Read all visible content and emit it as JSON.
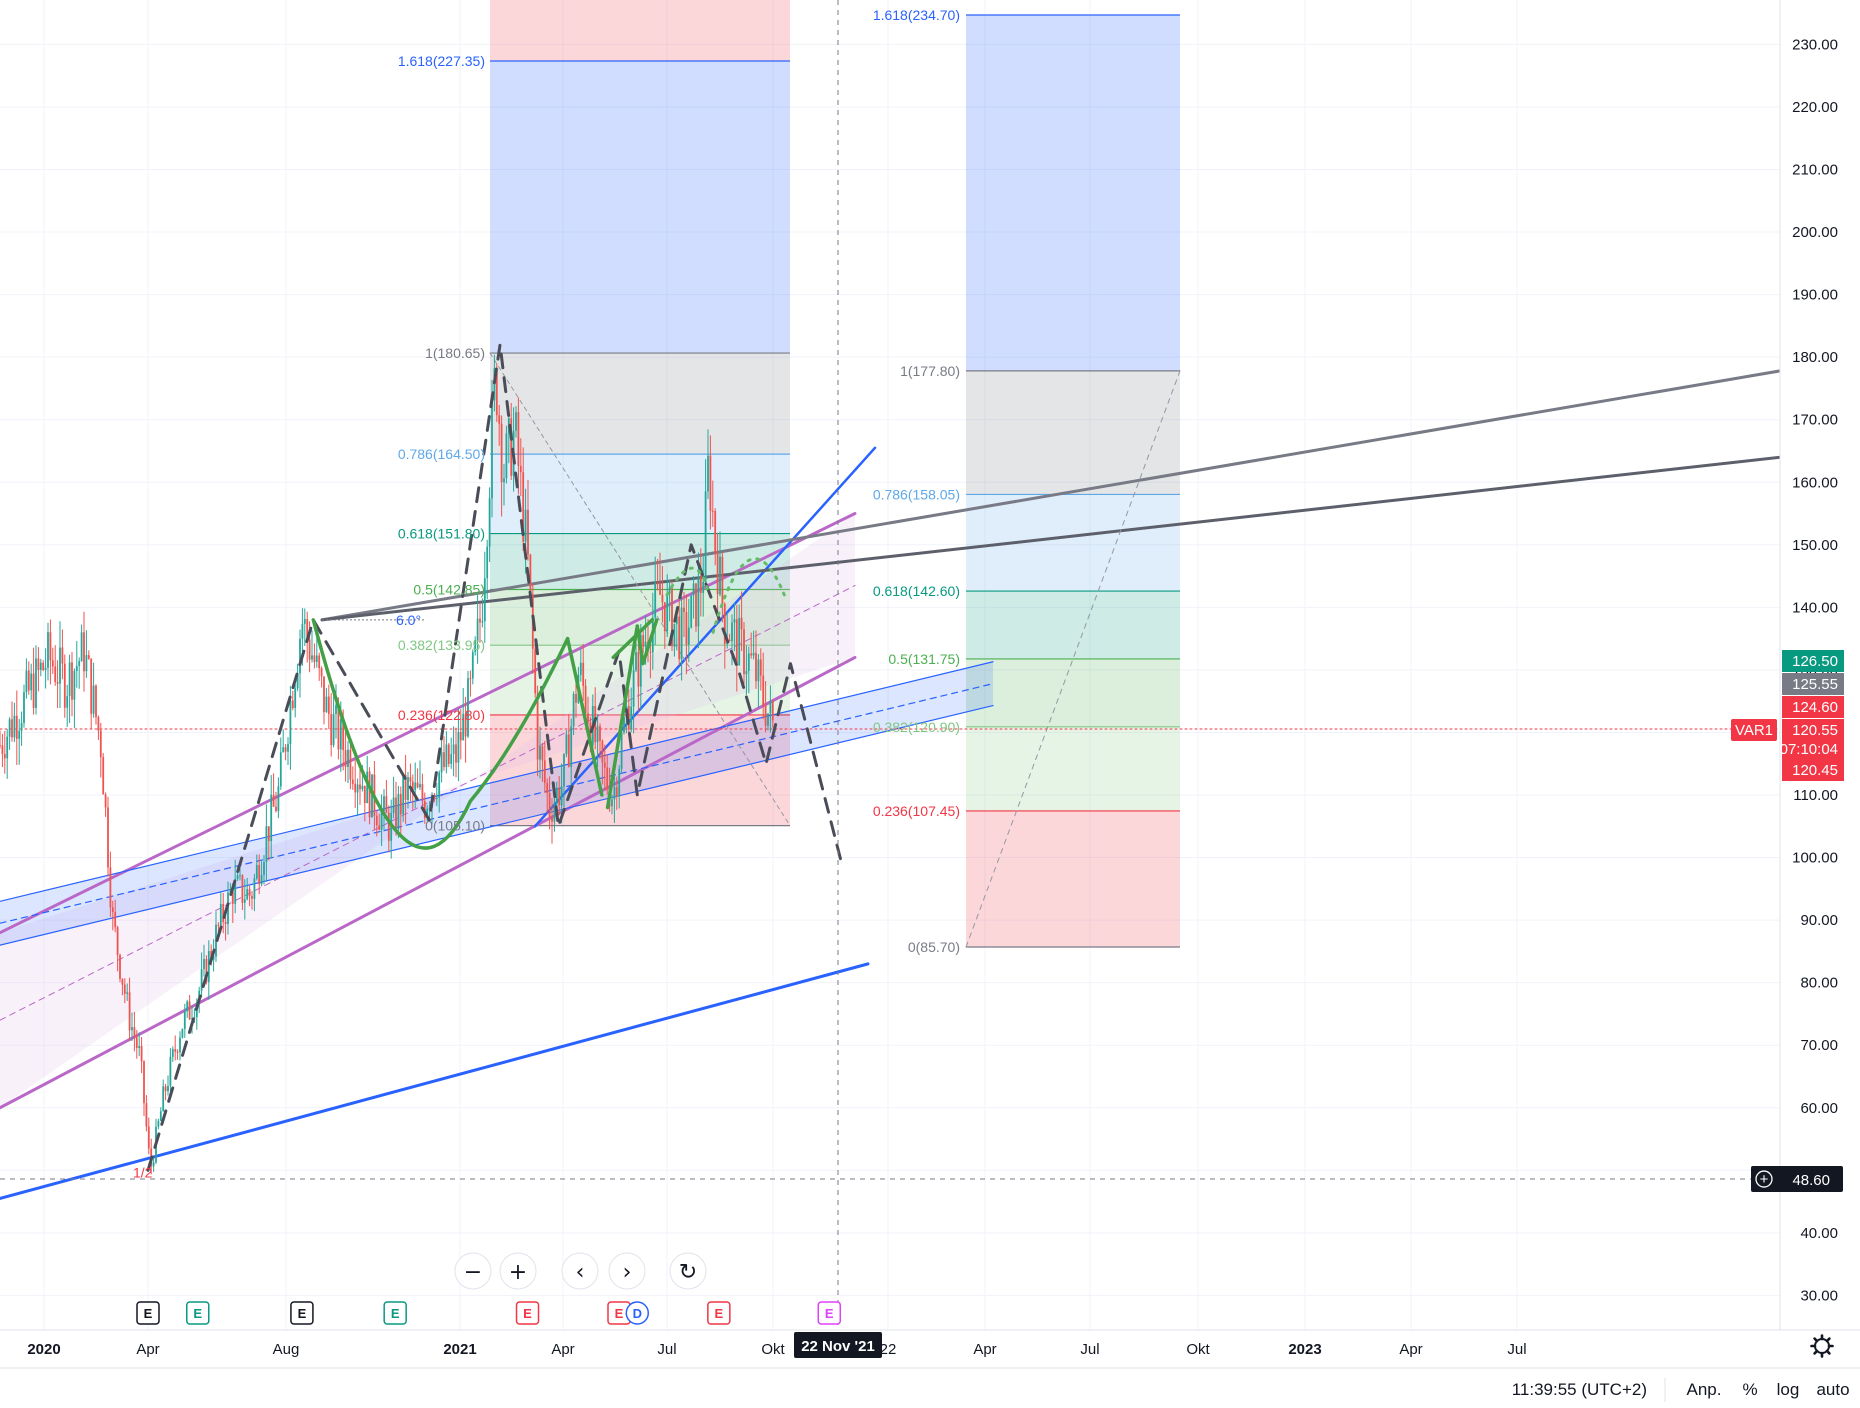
{
  "chart_data": {
    "type": "candlestick",
    "y_scale": "linear",
    "ylim": [
      25,
      239
    ],
    "xlim": [
      "2019-12-20",
      "2023-11-30"
    ],
    "y_ticks": [
      30,
      40,
      50,
      60,
      70,
      80,
      90,
      100,
      110,
      120,
      130,
      140,
      150,
      160,
      170,
      180,
      190,
      200,
      210,
      220,
      230
    ],
    "y_tick_labels": [
      "30.00",
      "40.00",
      "",
      "60.00",
      "70.00",
      "80.00",
      "90.00",
      "100.00",
      "110.00",
      "120.00",
      "130.00",
      "140.00",
      "150.00",
      "160.00",
      "170.00",
      "180.00",
      "190.00",
      "200.00",
      "210.00",
      "220.00",
      "230.00"
    ],
    "x_ticks": [
      {
        "date": "2020-01-01",
        "label": "2020",
        "bold": true
      },
      {
        "date": "2020-04-01",
        "label": "Apr",
        "bold": false
      },
      {
        "date": "2020-08-01",
        "label": "Aug",
        "bold": false
      },
      {
        "date": "2021-01-01",
        "label": "2021",
        "bold": true
      },
      {
        "date": "2021-04-01",
        "label": "Apr",
        "bold": false
      },
      {
        "date": "2021-07-01",
        "label": "Jul",
        "bold": false
      },
      {
        "date": "2021-10-01",
        "label": "Okt",
        "bold": false
      },
      {
        "date": "2022-01-01",
        "label": "22",
        "bold": false
      },
      {
        "date": "2022-04-01",
        "label": "Apr",
        "bold": false
      },
      {
        "date": "2022-07-01",
        "label": "Jul",
        "bold": false
      },
      {
        "date": "2022-10-01",
        "label": "Okt",
        "bold": false
      },
      {
        "date": "2023-01-01",
        "label": "2023",
        "bold": true
      },
      {
        "date": "2023-04-01",
        "label": "Apr",
        "bold": false
      },
      {
        "date": "2023-07-01",
        "label": "Jul",
        "bold": false
      }
    ],
    "crosshair": {
      "date": "2021-11-22",
      "label": "22 Nov '21",
      "price": 48.6,
      "price_label": "48.60"
    },
    "price_path": [
      [
        "2019-12-20",
        118
      ],
      [
        "2020-01-05",
        132
      ],
      [
        "2020-01-20",
        128
      ],
      [
        "2020-02-05",
        133
      ],
      [
        "2020-02-20",
        118
      ],
      [
        "2020-03-01",
        90
      ],
      [
        "2020-03-15",
        75
      ],
      [
        "2020-03-25",
        68
      ],
      [
        "2020-04-03",
        50
      ],
      [
        "2020-04-15",
        62
      ],
      [
        "2020-04-30",
        73
      ],
      [
        "2020-05-15",
        78
      ],
      [
        "2020-06-01",
        88
      ],
      [
        "2020-06-15",
        95
      ],
      [
        "2020-07-01",
        94
      ],
      [
        "2020-07-15",
        104
      ],
      [
        "2020-07-25",
        110
      ],
      [
        "2020-08-05",
        125
      ],
      [
        "2020-08-15",
        138
      ],
      [
        "2020-08-25",
        132
      ],
      [
        "2020-09-05",
        124
      ],
      [
        "2020-09-20",
        118
      ],
      [
        "2020-10-05",
        113
      ],
      [
        "2020-10-20",
        108
      ],
      [
        "2020-11-01",
        105
      ],
      [
        "2020-11-15",
        111
      ],
      [
        "2020-12-01",
        109
      ],
      [
        "2020-12-15",
        114
      ],
      [
        "2020-12-28",
        116
      ],
      [
        "2021-01-10",
        126
      ],
      [
        "2021-01-20",
        140
      ],
      [
        "2021-02-01",
        178
      ],
      [
        "2021-02-08",
        162
      ],
      [
        "2021-02-18",
        168
      ],
      [
        "2021-03-01",
        148
      ],
      [
        "2021-03-10",
        118
      ],
      [
        "2021-03-20",
        108
      ],
      [
        "2021-04-01",
        112
      ],
      [
        "2021-04-15",
        130
      ],
      [
        "2021-04-25",
        122
      ],
      [
        "2021-05-05",
        114
      ],
      [
        "2021-05-15",
        110
      ],
      [
        "2021-05-25",
        122
      ],
      [
        "2021-06-10",
        134
      ],
      [
        "2021-06-25",
        142
      ],
      [
        "2021-07-05",
        138
      ],
      [
        "2021-07-15",
        135
      ],
      [
        "2021-07-25",
        140
      ],
      [
        "2021-08-01",
        145
      ],
      [
        "2021-08-06",
        163
      ],
      [
        "2021-08-12",
        150
      ],
      [
        "2021-08-20",
        138
      ],
      [
        "2021-09-01",
        134
      ],
      [
        "2021-09-15",
        130
      ],
      [
        "2021-09-25",
        124
      ],
      [
        "2021-10-02",
        120.55
      ]
    ]
  },
  "axis": {
    "badges": [
      {
        "price": 126.5,
        "label": "126.50",
        "color": "#089981"
      },
      {
        "price": 125.55,
        "label": "125.55",
        "color": "#787b86"
      },
      {
        "price": 124.6,
        "label": "124.60",
        "color": "#f23645"
      },
      {
        "price": 120.55,
        "label": "120.55",
        "color": "#f23645",
        "sub": "07:10:04"
      },
      {
        "price": 120.45,
        "label": "120.45",
        "color": "#f23645"
      }
    ],
    "var_label": "VAR1",
    "last_price": 120.55
  },
  "fib_left": {
    "levels": [
      {
        "label": "1.618(227.35)",
        "price": 227.35,
        "color": "#2962ff"
      },
      {
        "label": "1(180.65)",
        "price": 180.65,
        "color": "#787b86"
      },
      {
        "label": "0.786(164.50)",
        "price": 164.5,
        "color": "#5fa8e8"
      },
      {
        "label": "0.618(151.80)",
        "price": 151.8,
        "color": "#089981"
      },
      {
        "label": "0.5(142.85)",
        "price": 142.85,
        "color": "#4caf50"
      },
      {
        "label": "0.382(133.95)",
        "price": 133.95,
        "color": "#81c784"
      },
      {
        "label": "0.236(122.80)",
        "price": 122.8,
        "color": "#f23645"
      },
      {
        "label": "0(105.10)",
        "price": 105.1,
        "color": "#787b86"
      }
    ]
  },
  "fib_right": {
    "levels": [
      {
        "label": "1.618(234.70)",
        "price": 234.7,
        "color": "#2962ff"
      },
      {
        "label": "1(177.80)",
        "price": 177.8,
        "color": "#787b86"
      },
      {
        "label": "0.786(158.05)",
        "price": 158.05,
        "color": "#5fa8e8"
      },
      {
        "label": "0.618(142.60)",
        "price": 142.6,
        "color": "#089981"
      },
      {
        "label": "0.5(131.75)",
        "price": 131.75,
        "color": "#4caf50"
      },
      {
        "label": "0.382(120.90)",
        "price": 120.9,
        "color": "#81c784"
      },
      {
        "label": "0.236(107.45)",
        "price": 107.45,
        "color": "#f23645"
      },
      {
        "label": "0(85.70)",
        "price": 85.7,
        "color": "#787b86"
      }
    ]
  },
  "annotations": {
    "angle_label": "6.0°",
    "low_label": "1/2"
  },
  "events": [
    {
      "date": "2020-04-01",
      "letter": "E",
      "color": "#131722"
    },
    {
      "date": "2020-05-15",
      "letter": "E",
      "color": "#089981"
    },
    {
      "date": "2020-08-15",
      "letter": "E",
      "color": "#131722"
    },
    {
      "date": "2020-11-05",
      "letter": "E",
      "color": "#089981"
    },
    {
      "date": "2021-03-01",
      "letter": "E",
      "color": "#f23645"
    },
    {
      "date": "2021-05-20",
      "letter": "E",
      "color": "#f23645"
    },
    {
      "date": "2021-06-05",
      "letter": "D",
      "color": "#2962ff"
    },
    {
      "date": "2021-08-15",
      "letter": "E",
      "color": "#f23645"
    },
    {
      "date": "2021-11-15",
      "letter": "E",
      "color": "#e040fb"
    }
  ],
  "controls": {
    "zoom_out": "−",
    "zoom_in": "+",
    "scroll_left": "‹",
    "scroll_right": "›",
    "reset": "↻"
  },
  "status_bar": {
    "time": "11:39:55 (UTC+2)",
    "adj": "Anp.",
    "percent": "%",
    "log": "log",
    "auto": "auto"
  }
}
